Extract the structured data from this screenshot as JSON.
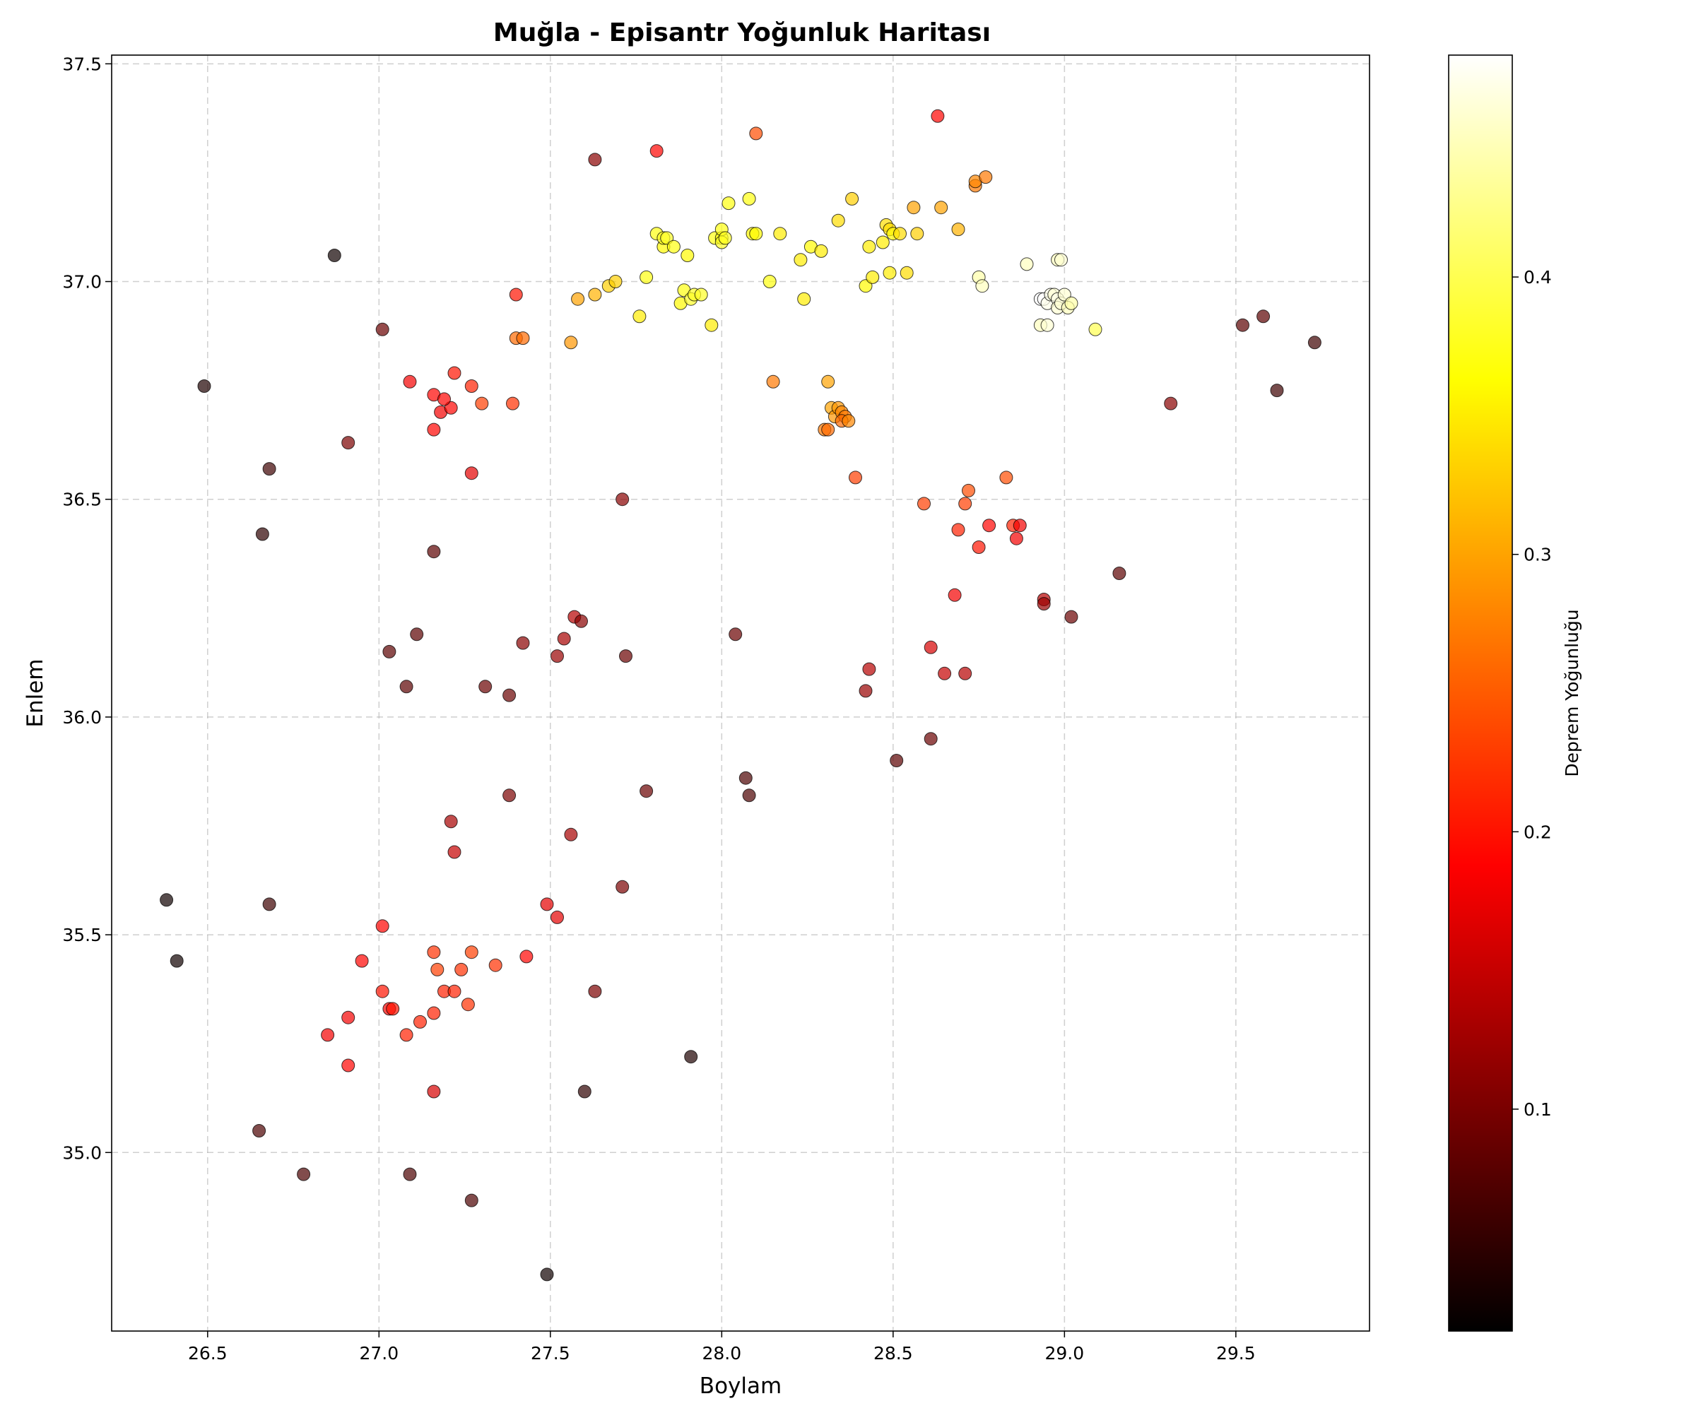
{
  "chart_data": {
    "type": "scatter",
    "title": "Muğla - Episantr Yoğunluk Haritası",
    "xlabel": "Boylam",
    "ylabel": "Enlem",
    "xlim": [
      26.22,
      29.89
    ],
    "ylim": [
      34.59,
      37.52
    ],
    "xticks": [
      26.5,
      27.0,
      27.5,
      28.0,
      28.5,
      29.0,
      29.5
    ],
    "yticks": [
      35.0,
      35.5,
      36.0,
      36.5,
      37.0,
      37.5
    ],
    "xtick_labels": [
      "26.5",
      "27.0",
      "27.5",
      "28.0",
      "28.5",
      "29.0",
      "29.5"
    ],
    "ytick_labels": [
      "35.0",
      "35.5",
      "36.0",
      "36.5",
      "37.0",
      "37.5"
    ],
    "grid": true,
    "colorbar": {
      "label": "Deprem Yoğunluğu",
      "range": [
        0.02,
        0.48
      ],
      "ticks": [
        0.1,
        0.2,
        0.3,
        0.4
      ],
      "tick_labels": [
        "0.1",
        "0.2",
        "0.3",
        "0.4"
      ],
      "colormap": "hot"
    },
    "points": [
      [
        26.38,
        35.58,
        0.03
      ],
      [
        26.41,
        35.44,
        0.03
      ],
      [
        26.49,
        36.76,
        0.04
      ],
      [
        26.66,
        36.42,
        0.05
      ],
      [
        26.68,
        36.57,
        0.06
      ],
      [
        26.68,
        35.57,
        0.06
      ],
      [
        26.65,
        35.05,
        0.07
      ],
      [
        26.78,
        34.95,
        0.07
      ],
      [
        26.87,
        37.06,
        0.03
      ],
      [
        27.01,
        36.89,
        0.09
      ],
      [
        26.91,
        36.63,
        0.1
      ],
      [
        27.09,
        34.95,
        0.07
      ],
      [
        27.27,
        34.89,
        0.07
      ],
      [
        27.49,
        34.72,
        0.03
      ],
      [
        27.6,
        35.14,
        0.05
      ],
      [
        27.91,
        35.22,
        0.04
      ],
      [
        27.63,
        35.37,
        0.1
      ],
      [
        27.71,
        35.61,
        0.1
      ],
      [
        27.56,
        35.73,
        0.13
      ],
      [
        27.78,
        35.83,
        0.09
      ],
      [
        27.38,
        35.82,
        0.1
      ],
      [
        27.21,
        35.76,
        0.13
      ],
      [
        27.22,
        35.69,
        0.15
      ],
      [
        27.16,
        35.14,
        0.16
      ],
      [
        27.08,
        36.07,
        0.08
      ],
      [
        27.03,
        36.15,
        0.08
      ],
      [
        27.11,
        36.19,
        0.08
      ],
      [
        27.31,
        36.07,
        0.09
      ],
      [
        27.38,
        36.05,
        0.09
      ],
      [
        27.42,
        36.17,
        0.11
      ],
      [
        27.52,
        36.14,
        0.12
      ],
      [
        27.54,
        36.18,
        0.13
      ],
      [
        27.57,
        36.23,
        0.14
      ],
      [
        27.59,
        36.22,
        0.11
      ],
      [
        27.72,
        36.14,
        0.09
      ],
      [
        27.71,
        36.5,
        0.11
      ],
      [
        27.16,
        36.38,
        0.08
      ],
      [
        27.27,
        36.56,
        0.17
      ],
      [
        27.16,
        36.66,
        0.19
      ],
      [
        27.09,
        36.77,
        0.18
      ],
      [
        27.16,
        36.74,
        0.19
      ],
      [
        27.18,
        36.7,
        0.18
      ],
      [
        27.21,
        36.71,
        0.19
      ],
      [
        27.19,
        36.73,
        0.19
      ],
      [
        27.22,
        36.79,
        0.2
      ],
      [
        27.27,
        36.76,
        0.21
      ],
      [
        27.3,
        36.72,
        0.23
      ],
      [
        27.39,
        36.72,
        0.22
      ],
      [
        27.4,
        36.97,
        0.2
      ],
      [
        27.4,
        36.87,
        0.26
      ],
      [
        27.42,
        36.87,
        0.26
      ],
      [
        27.56,
        36.86,
        0.29
      ],
      [
        27.58,
        36.96,
        0.3
      ],
      [
        27.63,
        36.97,
        0.31
      ],
      [
        27.67,
        36.99,
        0.33
      ],
      [
        27.69,
        37.0,
        0.33
      ],
      [
        27.63,
        37.28,
        0.11
      ],
      [
        27.81,
        37.3,
        0.19
      ],
      [
        28.1,
        37.34,
        0.24
      ],
      [
        28.63,
        37.38,
        0.19
      ],
      [
        27.76,
        36.92,
        0.35
      ],
      [
        27.78,
        37.01,
        0.37
      ],
      [
        27.88,
        36.95,
        0.36
      ],
      [
        27.89,
        36.98,
        0.37
      ],
      [
        27.91,
        36.96,
        0.38
      ],
      [
        27.92,
        36.97,
        0.38
      ],
      [
        27.94,
        36.97,
        0.38
      ],
      [
        27.97,
        36.9,
        0.35
      ],
      [
        27.81,
        37.11,
        0.37
      ],
      [
        27.83,
        37.08,
        0.36
      ],
      [
        27.83,
        37.1,
        0.38
      ],
      [
        27.84,
        37.1,
        0.38
      ],
      [
        27.86,
        37.08,
        0.37
      ],
      [
        27.9,
        37.06,
        0.36
      ],
      [
        27.98,
        37.1,
        0.37
      ],
      [
        28.0,
        37.1,
        0.37
      ],
      [
        28.0,
        37.09,
        0.38
      ],
      [
        28.0,
        37.12,
        0.37
      ],
      [
        28.01,
        37.1,
        0.38
      ],
      [
        28.02,
        37.18,
        0.37
      ],
      [
        28.08,
        37.19,
        0.37
      ],
      [
        28.09,
        37.11,
        0.36
      ],
      [
        28.1,
        37.11,
        0.36
      ],
      [
        28.14,
        37.0,
        0.37
      ],
      [
        28.17,
        37.11,
        0.35
      ],
      [
        28.23,
        37.05,
        0.35
      ],
      [
        28.24,
        36.96,
        0.35
      ],
      [
        28.26,
        37.08,
        0.36
      ],
      [
        28.29,
        37.07,
        0.35
      ],
      [
        28.34,
        37.14,
        0.34
      ],
      [
        28.38,
        37.19,
        0.33
      ],
      [
        28.42,
        36.99,
        0.36
      ],
      [
        28.43,
        37.08,
        0.35
      ],
      [
        28.44,
        37.01,
        0.35
      ],
      [
        28.47,
        37.09,
        0.35
      ],
      [
        28.48,
        37.13,
        0.34
      ],
      [
        28.49,
        37.12,
        0.34
      ],
      [
        28.5,
        37.11,
        0.36
      ],
      [
        28.52,
        37.11,
        0.34
      ],
      [
        28.49,
        37.02,
        0.35
      ],
      [
        28.54,
        37.02,
        0.34
      ],
      [
        28.57,
        37.11,
        0.33
      ],
      [
        28.56,
        37.17,
        0.3
      ],
      [
        28.64,
        37.17,
        0.3
      ],
      [
        28.69,
        37.12,
        0.31
      ],
      [
        28.74,
        37.22,
        0.27
      ],
      [
        28.74,
        37.23,
        0.28
      ],
      [
        28.77,
        37.24,
        0.27
      ],
      [
        28.15,
        36.77,
        0.27
      ],
      [
        28.31,
        36.77,
        0.3
      ],
      [
        28.32,
        36.71,
        0.3
      ],
      [
        28.33,
        36.69,
        0.29
      ],
      [
        28.34,
        36.71,
        0.29
      ],
      [
        28.35,
        36.7,
        0.28
      ],
      [
        28.36,
        36.69,
        0.27
      ],
      [
        28.35,
        36.68,
        0.26
      ],
      [
        28.37,
        36.68,
        0.28
      ],
      [
        28.3,
        36.66,
        0.27
      ],
      [
        28.31,
        36.66,
        0.26
      ],
      [
        28.39,
        36.55,
        0.23
      ],
      [
        28.59,
        36.49,
        0.23
      ],
      [
        28.71,
        36.49,
        0.23
      ],
      [
        28.72,
        36.52,
        0.24
      ],
      [
        28.69,
        36.43,
        0.21
      ],
      [
        28.78,
        36.44,
        0.19
      ],
      [
        28.75,
        36.39,
        0.2
      ],
      [
        28.83,
        36.55,
        0.24
      ],
      [
        28.85,
        36.44,
        0.21
      ],
      [
        28.87,
        36.44,
        0.18
      ],
      [
        28.86,
        36.41,
        0.18
      ],
      [
        28.68,
        36.28,
        0.18
      ],
      [
        28.94,
        36.27,
        0.14
      ],
      [
        28.94,
        36.26,
        0.12
      ],
      [
        29.02,
        36.23,
        0.09
      ],
      [
        29.16,
        36.33,
        0.08
      ],
      [
        28.61,
        36.16,
        0.16
      ],
      [
        28.65,
        36.1,
        0.15
      ],
      [
        28.71,
        36.1,
        0.14
      ],
      [
        28.43,
        36.11,
        0.14
      ],
      [
        28.42,
        36.06,
        0.12
      ],
      [
        28.04,
        36.19,
        0.09
      ],
      [
        28.07,
        35.86,
        0.07
      ],
      [
        28.08,
        35.82,
        0.07
      ],
      [
        28.51,
        35.9,
        0.08
      ],
      [
        28.61,
        35.95,
        0.09
      ],
      [
        28.75,
        37.01,
        0.44
      ],
      [
        28.76,
        36.99,
        0.45
      ],
      [
        28.89,
        37.04,
        0.45
      ],
      [
        28.93,
        36.9,
        0.45
      ],
      [
        28.95,
        36.9,
        0.46
      ],
      [
        28.93,
        36.96,
        0.48
      ],
      [
        28.94,
        36.96,
        0.48
      ],
      [
        28.95,
        36.95,
        0.47
      ],
      [
        28.96,
        36.97,
        0.47
      ],
      [
        28.97,
        36.97,
        0.46
      ],
      [
        28.98,
        36.96,
        0.47
      ],
      [
        28.98,
        36.94,
        0.46
      ],
      [
        28.99,
        36.95,
        0.46
      ],
      [
        29.0,
        36.97,
        0.46
      ],
      [
        29.01,
        36.94,
        0.45
      ],
      [
        29.02,
        36.95,
        0.44
      ],
      [
        28.98,
        37.05,
        0.45
      ],
      [
        28.99,
        37.05,
        0.46
      ],
      [
        29.09,
        36.89,
        0.4
      ],
      [
        29.31,
        36.72,
        0.11
      ],
      [
        29.52,
        36.9,
        0.08
      ],
      [
        29.58,
        36.92,
        0.08
      ],
      [
        29.62,
        36.75,
        0.06
      ],
      [
        29.73,
        36.86,
        0.06
      ],
      [
        26.85,
        35.27,
        0.18
      ],
      [
        26.91,
        35.31,
        0.18
      ],
      [
        26.91,
        35.2,
        0.19
      ],
      [
        26.95,
        35.44,
        0.19
      ],
      [
        27.01,
        35.52,
        0.19
      ],
      [
        27.01,
        35.37,
        0.2
      ],
      [
        27.03,
        35.33,
        0.19
      ],
      [
        27.04,
        35.33,
        0.2
      ],
      [
        27.08,
        35.27,
        0.21
      ],
      [
        27.12,
        35.3,
        0.21
      ],
      [
        27.16,
        35.32,
        0.21
      ],
      [
        27.16,
        35.46,
        0.22
      ],
      [
        27.17,
        35.42,
        0.23
      ],
      [
        27.19,
        35.37,
        0.21
      ],
      [
        27.22,
        35.37,
        0.21
      ],
      [
        27.24,
        35.42,
        0.22
      ],
      [
        27.26,
        35.34,
        0.22
      ],
      [
        27.27,
        35.46,
        0.23
      ],
      [
        27.34,
        35.43,
        0.22
      ],
      [
        27.43,
        35.45,
        0.19
      ],
      [
        27.49,
        35.57,
        0.17
      ],
      [
        27.52,
        35.54,
        0.17
      ]
    ]
  }
}
